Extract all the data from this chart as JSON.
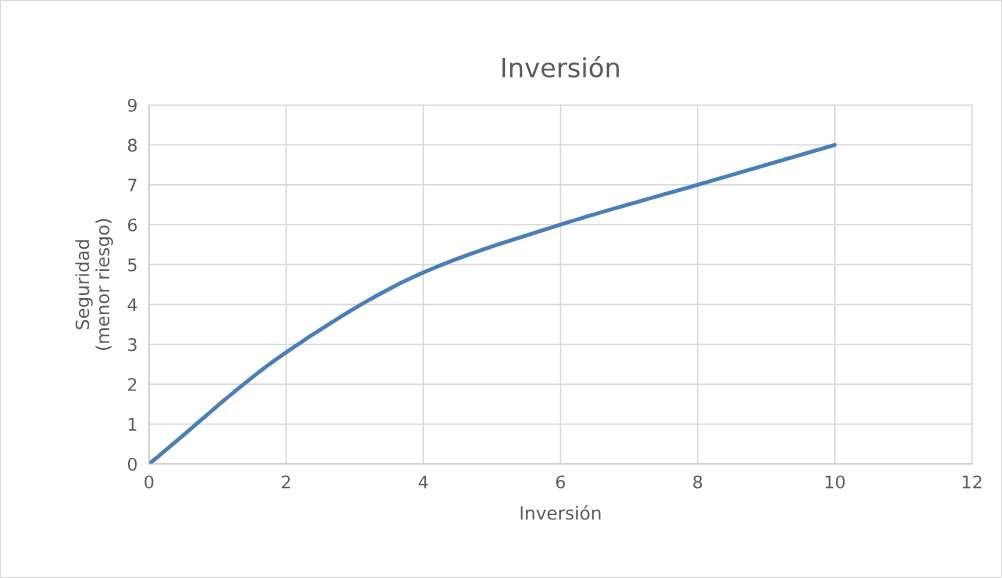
{
  "chart_data": {
    "type": "line",
    "title": "Inversión",
    "xlabel": "Inversión",
    "ylabel": "Seguridad\n(menor riesgo)",
    "x": [
      0,
      2,
      4,
      6,
      8,
      10
    ],
    "series": [
      {
        "color": "#4a7ebb",
        "values": [
          0,
          2.8,
          4.8,
          6,
          7,
          8
        ]
      }
    ],
    "xlim": [
      0,
      12
    ],
    "xticks": [
      0,
      2,
      4,
      6,
      8,
      10,
      12
    ],
    "ylim": [
      0,
      9
    ],
    "yticks": [
      0,
      1,
      2,
      3,
      4,
      5,
      6,
      7,
      8,
      9
    ],
    "grid": true,
    "marker": "none",
    "line_style": "solid",
    "legend": false
  }
}
